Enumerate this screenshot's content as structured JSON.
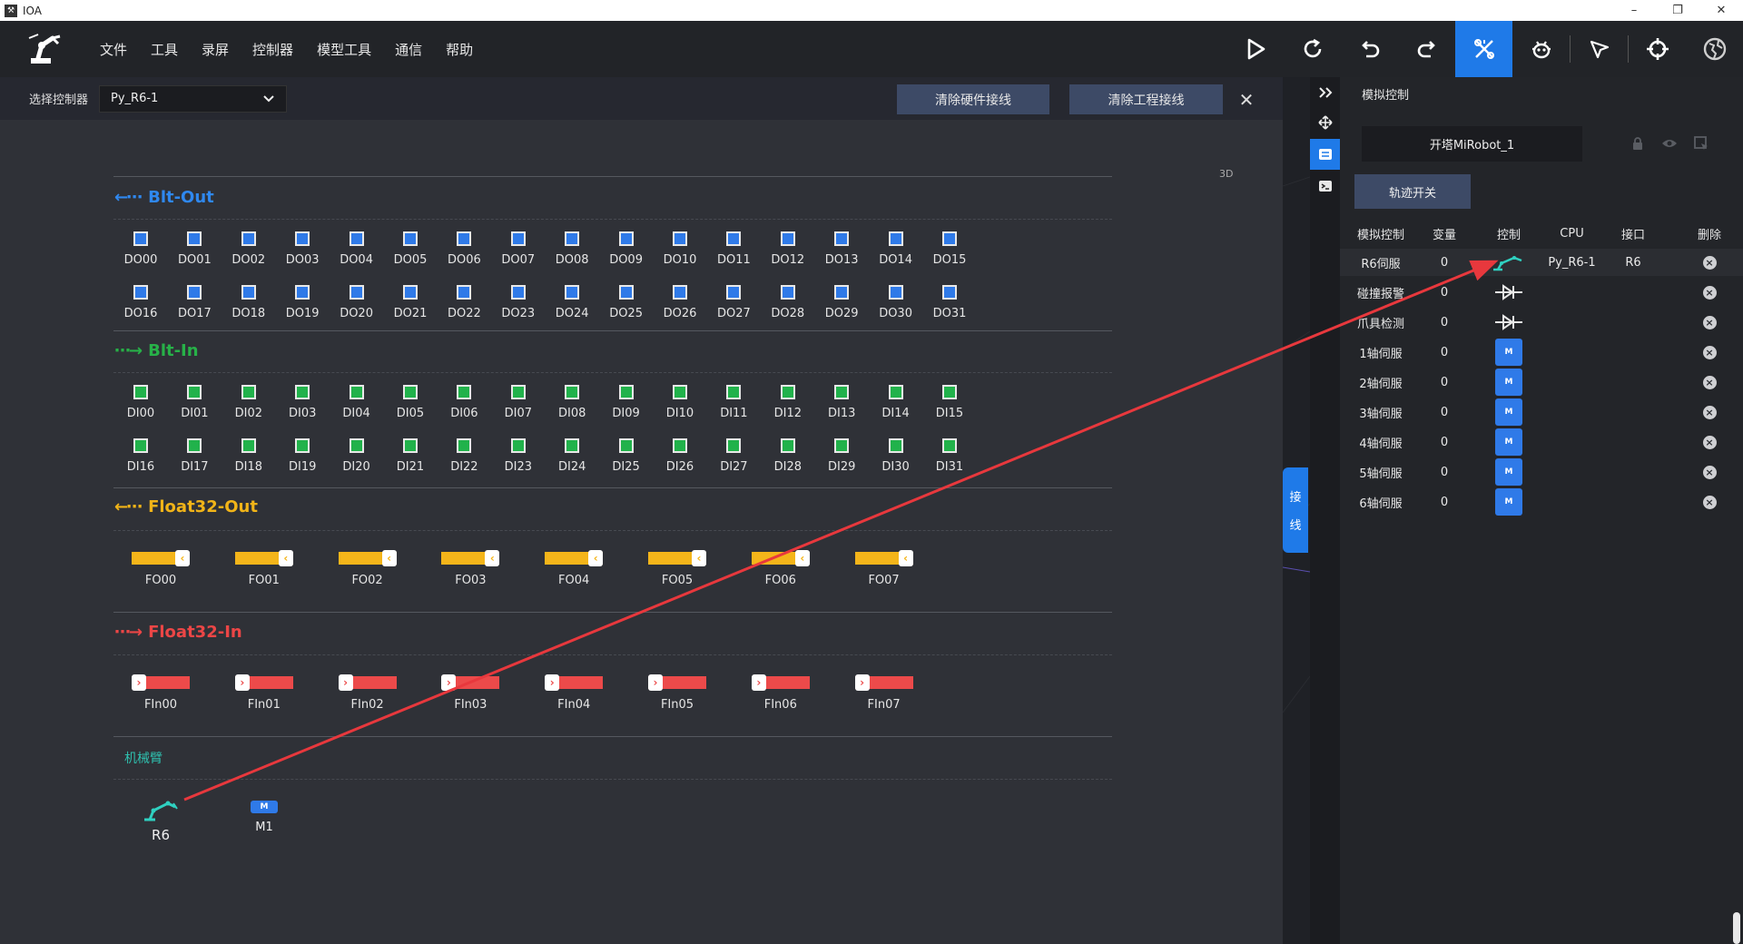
{
  "window": {
    "title": "IOA",
    "minimize": "–",
    "restore": "❐",
    "close": "✕"
  },
  "menu": [
    "文件",
    "工具",
    "录屏",
    "控制器",
    "模型工具",
    "通信",
    "帮助"
  ],
  "toolbar": [
    "play-icon",
    "refresh-icon",
    "undo-icon",
    "redo-icon",
    "wiring-icon",
    "robot-bug-icon",
    "pointer-icon",
    "target-icon",
    "globe-icon"
  ],
  "controller": {
    "label": "选择控制器",
    "value": "Py_R6-1",
    "clear_hardware": "清除硬件接线",
    "clear_project": "清除工程接线",
    "close": "✕"
  },
  "canvas": {
    "label_3d": "3D",
    "blt_out": {
      "title": "Blt-Out",
      "row1": [
        "DO00",
        "DO01",
        "DO02",
        "DO03",
        "DO04",
        "DO05",
        "DO06",
        "DO07",
        "DO08",
        "DO09",
        "DO10",
        "DO11",
        "DO12",
        "DO13",
        "DO14",
        "DO15"
      ],
      "row2": [
        "DO16",
        "DO17",
        "DO18",
        "DO19",
        "DO20",
        "DO21",
        "DO22",
        "DO23",
        "DO24",
        "DO25",
        "DO26",
        "DO27",
        "DO28",
        "DO29",
        "DO30",
        "DO31"
      ]
    },
    "blt_in": {
      "title": "Blt-In",
      "row1": [
        "DI00",
        "DI01",
        "DI02",
        "DI03",
        "DI04",
        "DI05",
        "DI06",
        "DI07",
        "DI08",
        "DI09",
        "DI10",
        "DI11",
        "DI12",
        "DI13",
        "DI14",
        "DI15"
      ],
      "row2": [
        "DI16",
        "DI17",
        "DI18",
        "DI19",
        "DI20",
        "DI21",
        "DI22",
        "DI23",
        "DI24",
        "DI25",
        "DI26",
        "DI27",
        "DI28",
        "DI29",
        "DI30",
        "DI31"
      ]
    },
    "float_out": {
      "title": "Float32-Out",
      "items": [
        "FO00",
        "FO01",
        "FO02",
        "FO03",
        "FO04",
        "FO05",
        "FO06",
        "FO07"
      ]
    },
    "float_in": {
      "title": "Float32-In",
      "items": [
        "FIn00",
        "FIn01",
        "FIn02",
        "FIn03",
        "FIn04",
        "FIn05",
        "FIn06",
        "FIn07"
      ]
    },
    "arm": {
      "title": "机械臂",
      "items": [
        "R6",
        "M1"
      ]
    }
  },
  "wire_tab": [
    "接",
    "线"
  ],
  "panel": {
    "title": "模拟控制",
    "robot_name": "开塔MiRobot_1",
    "track_button": "轨迹开关",
    "headers": [
      "模拟控制",
      "变量",
      "控制",
      "CPU",
      "接口",
      "删除"
    ],
    "rows": [
      {
        "name": "R6伺服",
        "var": "0",
        "icon": "robot-arm-icon",
        "cpu": "Py_R6-1",
        "port": "R6"
      },
      {
        "name": "碰撞报警",
        "var": "0",
        "icon": "diode-icon",
        "cpu": "",
        "port": ""
      },
      {
        "name": "爪具检测",
        "var": "0",
        "icon": "diode-icon",
        "cpu": "",
        "port": ""
      },
      {
        "name": "1轴伺服",
        "var": "0",
        "icon": "motor-icon",
        "cpu": "",
        "port": ""
      },
      {
        "name": "2轴伺服",
        "var": "0",
        "icon": "motor-icon",
        "cpu": "",
        "port": ""
      },
      {
        "name": "3轴伺服",
        "var": "0",
        "icon": "motor-icon",
        "cpu": "",
        "port": ""
      },
      {
        "name": "4轴伺服",
        "var": "0",
        "icon": "motor-icon",
        "cpu": "",
        "port": ""
      },
      {
        "name": "5轴伺服",
        "var": "0",
        "icon": "motor-icon",
        "cpu": "",
        "port": ""
      },
      {
        "name": "6轴伺服",
        "var": "0",
        "icon": "motor-icon",
        "cpu": "",
        "port": ""
      }
    ],
    "motor_letter": "M",
    "delete_glyph": "×"
  },
  "colors": {
    "accent": "#1f7ae8",
    "do": "#2f7ae8",
    "di": "#21b24b",
    "float_out": "#f4b51a",
    "float_in": "#ec4a4a",
    "annotation": "#e8383d"
  }
}
